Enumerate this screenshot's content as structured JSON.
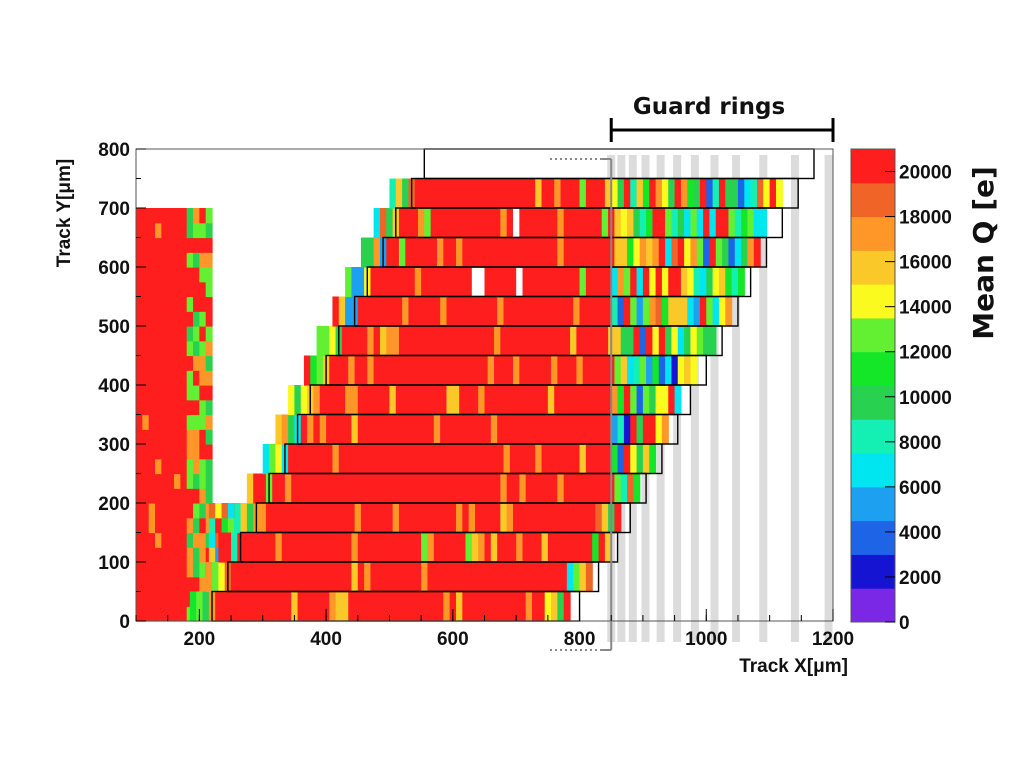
{
  "chart_data": {
    "type": "heatmap",
    "title": "",
    "xlabel": "Track X[μm]",
    "ylabel": "Track Y[μm]",
    "xlim": [
      100,
      1200
    ],
    "ylim": [
      0,
      800
    ],
    "x_ticks": [
      "200",
      "400",
      "600",
      "800",
      "1000",
      "1200"
    ],
    "y_ticks": [
      "0",
      "100",
      "200",
      "300",
      "400",
      "500",
      "600",
      "700",
      "800"
    ],
    "colorbar": {
      "label": "Mean Q [e]",
      "range": [
        0,
        21000
      ],
      "ticks": [
        "0",
        "2000",
        "4000",
        "6000",
        "8000",
        "10000",
        "12000",
        "14000",
        "16000",
        "18000",
        "20000"
      ],
      "colors": [
        "#7a28e6",
        "#1414d2",
        "#1e64e6",
        "#1ea0f0",
        "#00e6f0",
        "#14f0b4",
        "#28d250",
        "#14e628",
        "#64f032",
        "#fafa1e",
        "#fac828",
        "#ff9628",
        "#f06428",
        "#ff1e1e"
      ]
    },
    "annotation": "Guard rings",
    "guard_ring_bracket_x": [
      850,
      1200
    ],
    "guard_ring_x": [
      850,
      866,
      884,
      904,
      928,
      954,
      982,
      1013,
      1047,
      1090,
      1140,
      1193
    ],
    "pixel_rows": [
      {
        "y0": 0,
        "y1": 50,
        "x0": 220,
        "x1": 800
      },
      {
        "y0": 50,
        "y1": 100,
        "x0": 245,
        "x1": 830
      },
      {
        "y0": 100,
        "y1": 150,
        "x0": 265,
        "x1": 860
      },
      {
        "y0": 150,
        "y1": 200,
        "x0": 290,
        "x1": 880
      },
      {
        "y0": 200,
        "y1": 250,
        "x0": 310,
        "x1": 905
      },
      {
        "y0": 250,
        "y1": 300,
        "x0": 335,
        "x1": 930
      },
      {
        "y0": 300,
        "y1": 350,
        "x0": 355,
        "x1": 955
      },
      {
        "y0": 350,
        "y1": 400,
        "x0": 375,
        "x1": 975
      },
      {
        "y0": 400,
        "y1": 450,
        "x0": 400,
        "x1": 1000
      },
      {
        "y0": 450,
        "y1": 500,
        "x0": 420,
        "x1": 1025
      },
      {
        "y0": 500,
        "y1": 550,
        "x0": 445,
        "x1": 1050
      },
      {
        "y0": 550,
        "y1": 600,
        "x0": 465,
        "x1": 1070
      },
      {
        "y0": 600,
        "y1": 650,
        "x0": 490,
        "x1": 1095
      },
      {
        "y0": 650,
        "y1": 700,
        "x0": 510,
        "x1": 1120
      },
      {
        "y0": 700,
        "y1": 750,
        "x0": 535,
        "x1": 1145
      },
      {
        "y0": 750,
        "y1": 800,
        "x0": 555,
        "x1": 1170
      }
    ],
    "grid": false,
    "colorbar_position": "right"
  }
}
